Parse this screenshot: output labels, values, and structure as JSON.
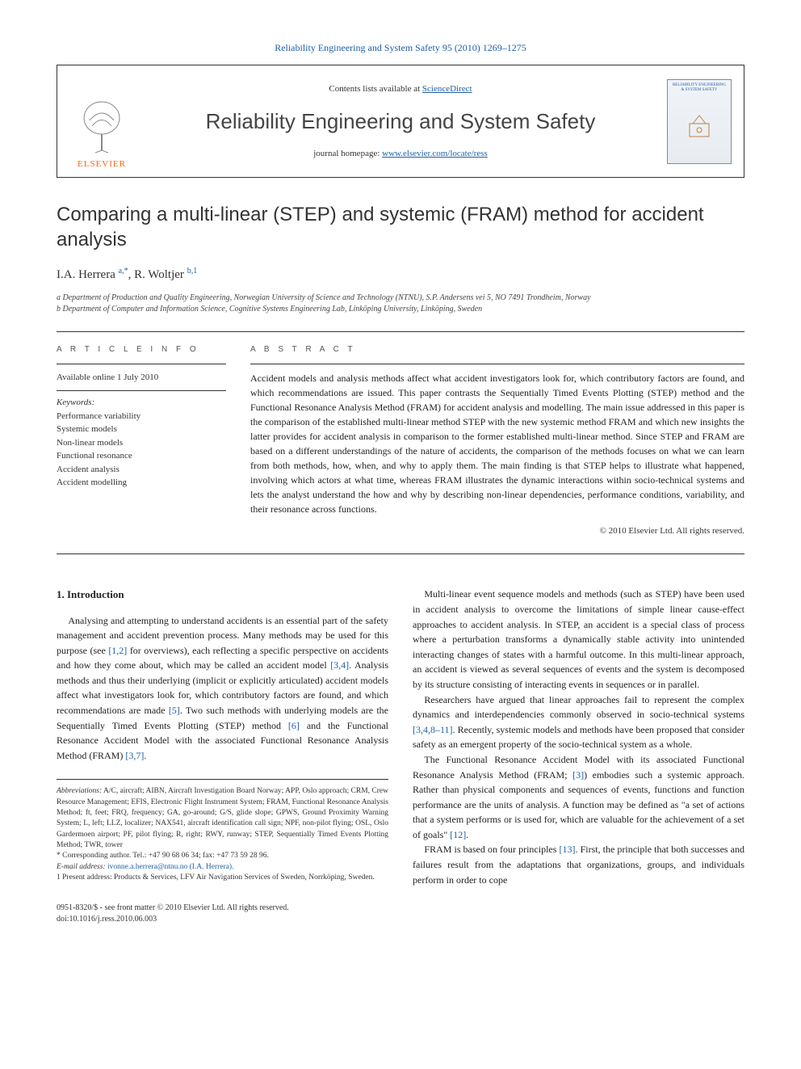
{
  "top_citation": "Reliability Engineering and System Safety 95 (2010) 1269–1275",
  "header": {
    "contents_prefix": "Contents lists available at ",
    "contents_link": "ScienceDirect",
    "journal_title": "Reliability Engineering and System Safety",
    "homepage_prefix": "journal homepage: ",
    "homepage_link": "www.elsevier.com/locate/ress",
    "publisher": "ELSEVIER",
    "cover_text": "RELIABILITY ENGINEERING & SYSTEM SAFETY"
  },
  "article": {
    "title": "Comparing a multi-linear (STEP) and systemic (FRAM) method for accident analysis",
    "authors_html": "I.A. Herrera <sup>a,*</sup>, R. Woltjer <sup>b,1</sup>",
    "affiliations": [
      "a Department of Production and Quality Engineering, Norwegian University of Science and Technology (NTNU), S.P. Andersens vei 5, NO 7491 Trondheim, Norway",
      "b Department of Computer and Information Science, Cognitive Systems Engineering Lab, Linköping University, Linköping, Sweden"
    ]
  },
  "info": {
    "heading": "A R T I C L E   I N F O",
    "available": "Available online 1 July 2010",
    "keywords_label": "Keywords:",
    "keywords": [
      "Performance variability",
      "Systemic models",
      "Non-linear models",
      "Functional resonance",
      "Accident analysis",
      "Accident modelling"
    ]
  },
  "abstract": {
    "heading": "A B S T R A C T",
    "text": "Accident models and analysis methods affect what accident investigators look for, which contributory factors are found, and which recommendations are issued. This paper contrasts the Sequentially Timed Events Plotting (STEP) method and the Functional Resonance Analysis Method (FRAM) for accident analysis and modelling. The main issue addressed in this paper is the comparison of the established multi-linear method STEP with the new systemic method FRAM and which new insights the latter provides for accident analysis in comparison to the former established multi-linear method. Since STEP and FRAM are based on a different understandings of the nature of accidents, the comparison of the methods focuses on what we can learn from both methods, how, when, and why to apply them. The main finding is that STEP helps to illustrate what happened, involving which actors at what time, whereas FRAM illustrates the dynamic interactions within socio-technical systems and lets the analyst understand the how and why by describing non-linear dependencies, performance conditions, variability, and their resonance across functions.",
    "copyright": "© 2010 Elsevier Ltd. All rights reserved."
  },
  "body": {
    "section1_heading": "1. Introduction",
    "left": [
      "Analysing and attempting to understand accidents is an essential part of the safety management and accident prevention process. Many methods may be used for this purpose (see [1,2] for overviews), each reflecting a specific perspective on accidents and how they come about, which may be called an accident model [3,4]. Analysis methods and thus their underlying (implicit or explicitly articulated) accident models affect what investigators look for, which contributory factors are found, and which recommendations are made [5]. Two such methods with underlying models are the Sequentially Timed Events Plotting (STEP) method [6] and the Functional Resonance Accident Model with the associated Functional Resonance Analysis Method (FRAM) [3,7]."
    ],
    "right": [
      "Multi-linear event sequence models and methods (such as STEP) have been used in accident analysis to overcome the limitations of simple linear cause-effect approaches to accident analysis. In STEP, an accident is a special class of process where a perturbation transforms a dynamically stable activity into unintended interacting changes of states with a harmful outcome. In this multi-linear approach, an accident is viewed as several sequences of events and the system is decomposed by its structure consisting of interacting events in sequences or in parallel.",
      "Researchers have argued that linear approaches fail to represent the complex dynamics and interdependencies commonly observed in socio-technical systems [3,4,8–11]. Recently, systemic models and methods have been proposed that consider safety as an emergent property of the socio-technical system as a whole.",
      "The Functional Resonance Accident Model with its associated Functional Resonance Analysis Method (FRAM; [3]) embodies such a systemic approach. Rather than physical components and sequences of events, functions and function performance are the units of analysis. A function may be defined as \"a set of actions that a system performs or is used for, which are valuable for the achievement of a set of goals\" [12].",
      "FRAM is based on four principles [13]. First, the principle that both successes and failures result from the adaptations that organizations, groups, and individuals perform in order to cope"
    ]
  },
  "footnotes": {
    "abbrev_label": "Abbreviations:",
    "abbrev_text": " A/C, aircraft; AIBN, Aircraft Investigation Board Norway; APP, Oslo approach; CRM, Crew Resource Management; EFIS, Electronic Flight Instrument System; FRAM, Functional Resonance Analysis Method; ft, feet; FRQ, frequency; GA, go-around; G/S, glide slope; GPWS, Ground Proximity Warning System; L, left; LLZ, localizer; NAX541, aircraft identification call sign; NPF, non-pilot flying; OSL, Oslo Gardermoen airport; PF, pilot flying; R, right; RWY, runway; STEP, Sequentially Timed Events Plotting Method; TWR, tower",
    "corr_author": "* Corresponding author. Tel.: +47 90 68 06 34; fax: +47 73 59 28 96.",
    "email_label": "E-mail address:",
    "email": " ivonne.a.herrera@ntnu.no (I.A. Herrera).",
    "present": "1 Present address: Products & Services, LFV Air Navigation Services of Sweden, Norrköping, Sweden."
  },
  "bottom": {
    "issn": "0951-8320/$ - see front matter © 2010 Elsevier Ltd. All rights reserved.",
    "doi": "doi:10.1016/j.ress.2010.06.003"
  },
  "colors": {
    "link": "#2060a8",
    "elsevier_orange": "#ff6600",
    "text": "#222222",
    "border": "#333333"
  },
  "typography": {
    "body_pt": 12,
    "title_pt": 24,
    "journal_title_pt": 26,
    "footnote_pt": 9.5
  }
}
